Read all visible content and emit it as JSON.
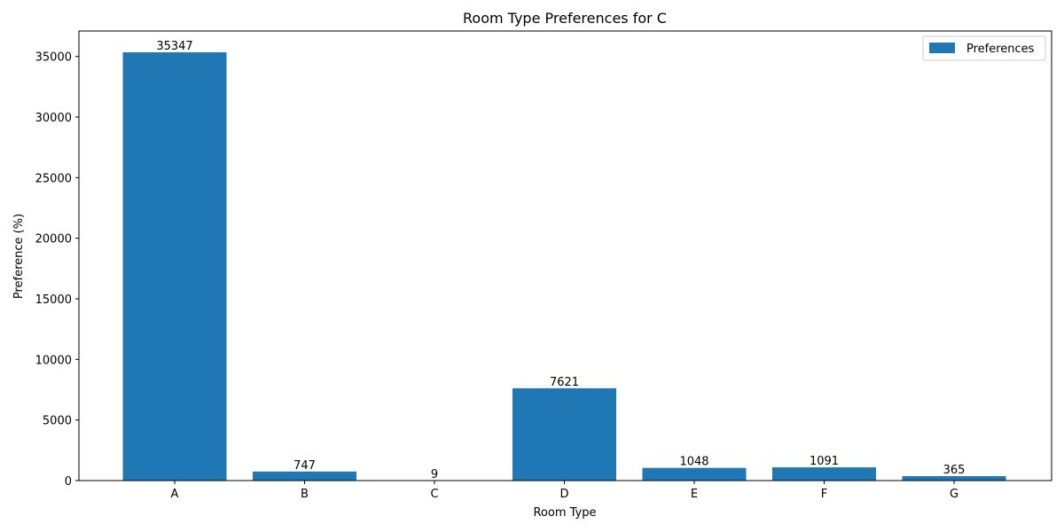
{
  "chart_data": {
    "type": "bar",
    "title": "Room Type Preferences for C",
    "xlabel": "Room Type",
    "ylabel": "Preference (%)",
    "categories": [
      "A",
      "B",
      "C",
      "D",
      "E",
      "F",
      "G"
    ],
    "series": [
      {
        "name": "Preferences",
        "values": [
          35347,
          747,
          9,
          7621,
          1048,
          1091,
          365
        ]
      }
    ],
    "ylim": [
      0,
      37100
    ],
    "yticks": [
      0,
      5000,
      10000,
      15000,
      20000,
      25000,
      30000,
      35000
    ],
    "grid": false,
    "legend_position": "top-right",
    "bar_color": "#1f77b4"
  }
}
